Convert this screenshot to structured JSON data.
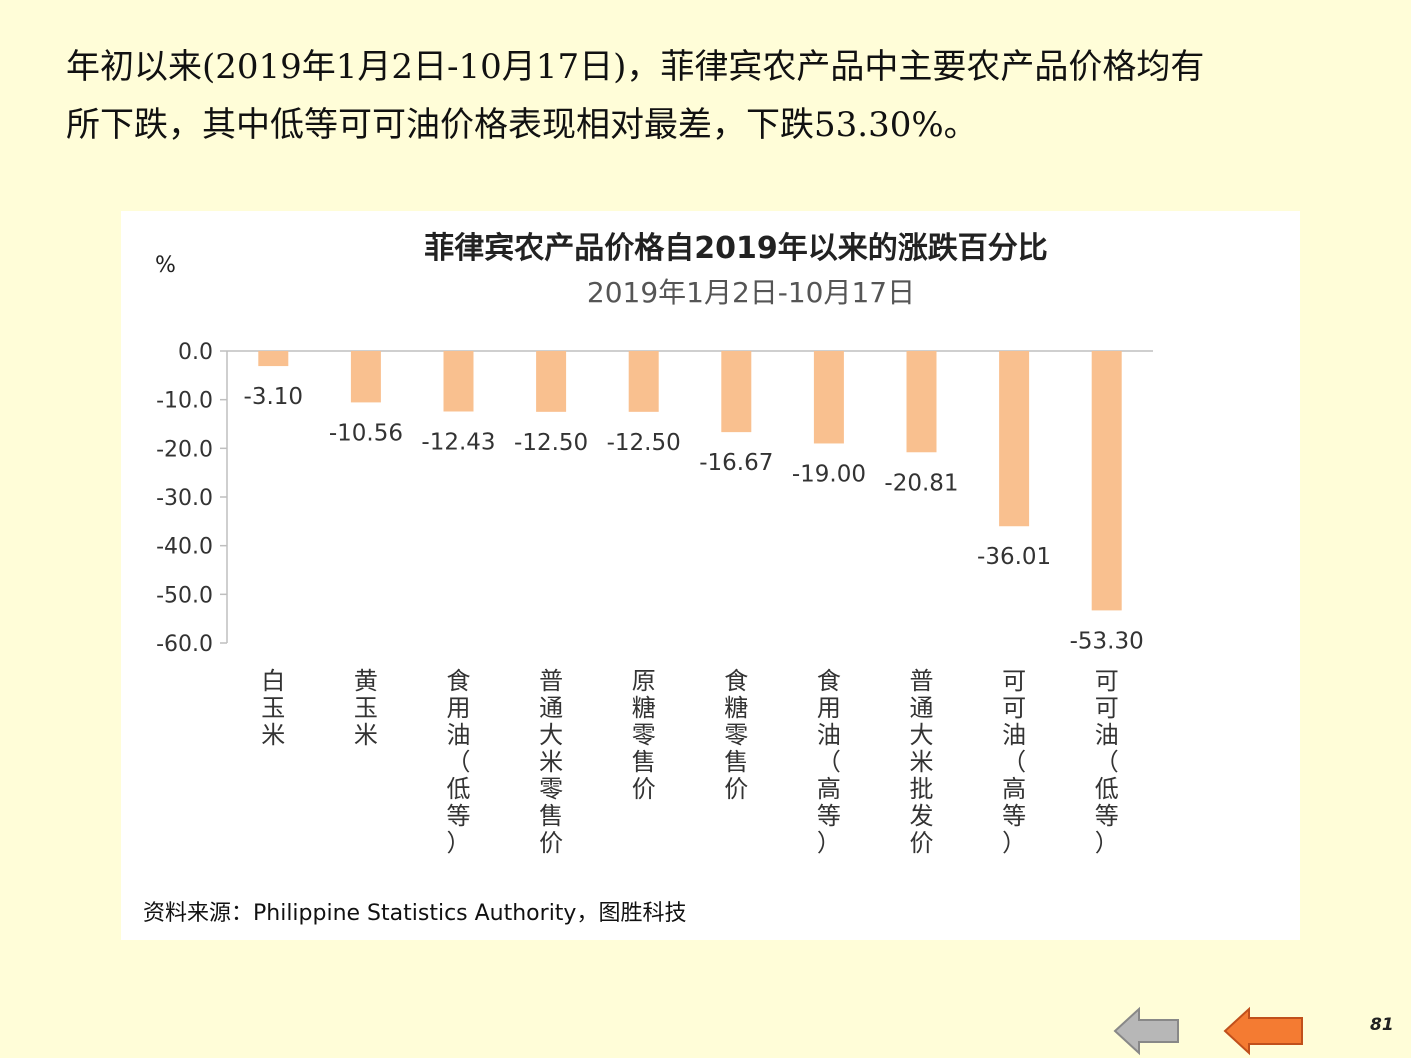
{
  "intro": {
    "line1": "年初以来(2019年1月2日-10月17日)，菲律宾农产品中主要农产品价格均有",
    "line2": "所下跌，其中低等可可油价格表现相对最差，下跌53.30%。"
  },
  "chart_data": {
    "type": "bar",
    "title": "菲律宾农产品价格自2019年以来的涨跌百分比",
    "subtitle": "2019年1月2日-10月17日",
    "ylabel": "%",
    "ylim": [
      -60,
      0
    ],
    "yticks": [
      "0.0",
      "-10.0",
      "-20.0",
      "-30.0",
      "-40.0",
      "-50.0",
      "-60.0"
    ],
    "categories": [
      "白玉米",
      "黄玉米",
      "食用油（低等）",
      "普通大米零售价",
      "原糖零售价",
      "食糖零售价",
      "食用油（高等）",
      "普通大米批发价",
      "可可油（高等）",
      "可可油（低等）"
    ],
    "values": [
      -3.1,
      -10.56,
      -12.43,
      -12.5,
      -12.5,
      -16.67,
      -19.0,
      -20.81,
      -36.01,
      -53.3
    ],
    "value_labels": [
      "-3.10",
      "-10.56",
      "-12.43",
      "-12.50",
      "-12.50",
      "-16.67",
      "-19.00",
      "-20.81",
      "-36.01",
      "-53.30"
    ],
    "bar_color": "#F9C08F",
    "grid": false,
    "legend": "none"
  },
  "source": "资料来源：Philippine  Statistics Authority，图胜科技",
  "nav": {
    "prev_icon": "left-arrow-icon",
    "next_icon": "left-arrow-icon",
    "prev_color": "#B7B7B7",
    "next_color": "#F47B32"
  },
  "page_number": "81"
}
